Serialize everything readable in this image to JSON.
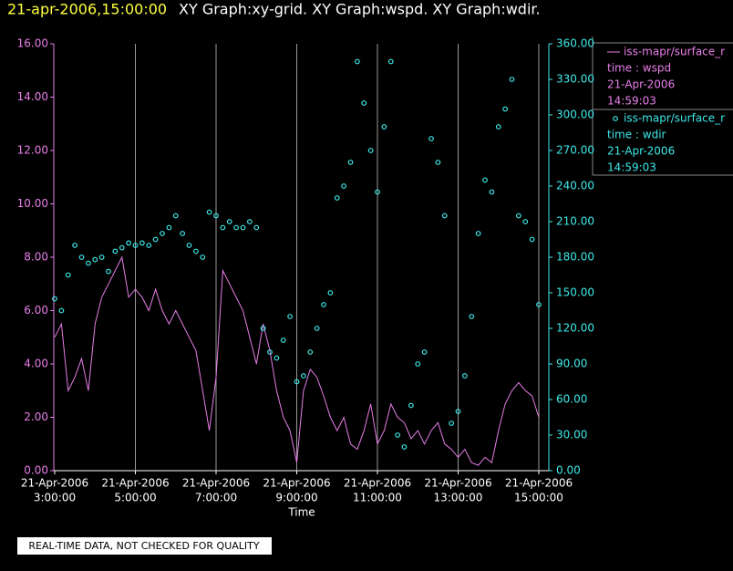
{
  "chart_data": {
    "type": "line_scatter",
    "title": "21-apr-2006,15:00:00",
    "subtitle": "XY Graph:xy-grid.  XY Graph:wspd.  XY Graph:wdir.",
    "x_label": "Time",
    "footer": "REAL-TIME DATA, NOT CHECKED FOR QUALITY",
    "grid": true,
    "x": [
      "2006-04-21T03:00",
      "2006-04-21T03:10",
      "2006-04-21T03:20",
      "2006-04-21T03:30",
      "2006-04-21T03:40",
      "2006-04-21T03:50",
      "2006-04-21T04:00",
      "2006-04-21T04:10",
      "2006-04-21T04:20",
      "2006-04-21T04:30",
      "2006-04-21T04:40",
      "2006-04-21T04:50",
      "2006-04-21T05:00",
      "2006-04-21T05:10",
      "2006-04-21T05:20",
      "2006-04-21T05:30",
      "2006-04-21T05:40",
      "2006-04-21T05:50",
      "2006-04-21T06:00",
      "2006-04-21T06:10",
      "2006-04-21T06:20",
      "2006-04-21T06:30",
      "2006-04-21T06:40",
      "2006-04-21T06:50",
      "2006-04-21T07:00",
      "2006-04-21T07:10",
      "2006-04-21T07:20",
      "2006-04-21T07:30",
      "2006-04-21T07:40",
      "2006-04-21T07:50",
      "2006-04-21T08:00",
      "2006-04-21T08:10",
      "2006-04-21T08:20",
      "2006-04-21T08:30",
      "2006-04-21T08:40",
      "2006-04-21T08:50",
      "2006-04-21T09:00",
      "2006-04-21T09:10",
      "2006-04-21T09:20",
      "2006-04-21T09:30",
      "2006-04-21T09:40",
      "2006-04-21T09:50",
      "2006-04-21T10:00",
      "2006-04-21T10:10",
      "2006-04-21T10:20",
      "2006-04-21T10:30",
      "2006-04-21T10:40",
      "2006-04-21T10:50",
      "2006-04-21T11:00",
      "2006-04-21T11:10",
      "2006-04-21T11:20",
      "2006-04-21T11:30",
      "2006-04-21T11:40",
      "2006-04-21T11:50",
      "2006-04-21T12:00",
      "2006-04-21T12:10",
      "2006-04-21T12:20",
      "2006-04-21T12:30",
      "2006-04-21T12:40",
      "2006-04-21T12:50",
      "2006-04-21T13:00",
      "2006-04-21T13:10",
      "2006-04-21T13:20",
      "2006-04-21T13:30",
      "2006-04-21T13:40",
      "2006-04-21T13:50",
      "2006-04-21T14:00",
      "2006-04-21T14:10",
      "2006-04-21T14:20",
      "2006-04-21T14:30",
      "2006-04-21T14:40",
      "2006-04-21T14:50",
      "2006-04-21T15:00"
    ],
    "xlim": [
      "2006-04-21T03:00",
      "2006-04-21T15:00"
    ],
    "xticks": [
      {
        "value": "2006-04-21T03:00",
        "label": [
          "21-Apr-2006",
          "3:00:00"
        ]
      },
      {
        "value": "2006-04-21T05:00",
        "label": [
          "21-Apr-2006",
          "5:00:00"
        ]
      },
      {
        "value": "2006-04-21T07:00",
        "label": [
          "21-Apr-2006",
          "7:00:00"
        ]
      },
      {
        "value": "2006-04-21T09:00",
        "label": [
          "21-Apr-2006",
          "9:00:00"
        ]
      },
      {
        "value": "2006-04-21T11:00",
        "label": [
          "21-Apr-2006",
          "11:00:00"
        ]
      },
      {
        "value": "2006-04-21T13:00",
        "label": [
          "21-Apr-2006",
          "13:00:00"
        ]
      },
      {
        "value": "2006-04-21T15:00",
        "label": [
          "21-Apr-2006",
          "15:00:00"
        ]
      }
    ],
    "ylim": [
      0,
      16
    ],
    "yticks": [
      {
        "value": 0,
        "label": "0.00"
      },
      {
        "value": 2,
        "label": "2.00"
      },
      {
        "value": 4,
        "label": "4.00"
      },
      {
        "value": 6,
        "label": "6.00"
      },
      {
        "value": 8,
        "label": "8.00"
      },
      {
        "value": 10,
        "label": "10.00"
      },
      {
        "value": 12,
        "label": "12.00"
      },
      {
        "value": 14,
        "label": "14.00"
      },
      {
        "value": 16,
        "label": "16.00"
      }
    ],
    "y2lim": [
      0,
      360
    ],
    "y2ticks": [
      {
        "value": 0,
        "label": "0.00"
      },
      {
        "value": 30,
        "label": "30.00"
      },
      {
        "value": 60,
        "label": "60.00"
      },
      {
        "value": 90,
        "label": "90.00"
      },
      {
        "value": 120,
        "label": "120.00"
      },
      {
        "value": 150,
        "label": "150.00"
      },
      {
        "value": 180,
        "label": "180.00"
      },
      {
        "value": 210,
        "label": "210.00"
      },
      {
        "value": 240,
        "label": "240.00"
      },
      {
        "value": 270,
        "label": "270.00"
      },
      {
        "value": 300,
        "label": "300.00"
      },
      {
        "value": 330,
        "label": "330.00"
      },
      {
        "value": 360,
        "label": "360.00"
      }
    ],
    "series": [
      {
        "name": "iss-mapr/surface_r",
        "legend_text": [
          "time : wspd",
          "21-Apr-2006",
          "14:59:03"
        ],
        "color": "#e87ee8",
        "kind": "line",
        "values": [
          5.0,
          5.5,
          3.0,
          3.5,
          4.2,
          3.0,
          5.5,
          6.5,
          7.0,
          7.5,
          8.0,
          6.5,
          6.8,
          6.5,
          6.0,
          6.8,
          6.0,
          5.5,
          6.0,
          5.5,
          5.0,
          4.5,
          3.0,
          1.5,
          3.5,
          7.5,
          7.0,
          6.5,
          6.0,
          5.0,
          4.0,
          5.5,
          4.5,
          3.0,
          2.0,
          1.5,
          0.3,
          3.0,
          3.8,
          3.5,
          2.8,
          2.0,
          1.5,
          2.0,
          1.0,
          0.8,
          1.5,
          2.5,
          1.0,
          1.5,
          2.5,
          2.0,
          1.8,
          1.2,
          1.5,
          1.0,
          1.5,
          1.8,
          1.0,
          0.8,
          0.5,
          0.8,
          0.3,
          0.2,
          0.5,
          0.3,
          1.5,
          2.5,
          3.0,
          3.3,
          3.0,
          2.8,
          2.0
        ]
      },
      {
        "name": "iss-mapr/surface_r",
        "legend_text": [
          "time : wdir",
          "21-Apr-2006",
          "14:59:03"
        ],
        "color": "#3fe8e8",
        "kind": "scatter",
        "axis": "y2",
        "values": [
          145,
          135,
          165,
          190,
          180,
          175,
          178,
          180,
          168,
          185,
          188,
          192,
          190,
          192,
          190,
          195,
          200,
          205,
          215,
          200,
          190,
          185,
          180,
          218,
          215,
          205,
          210,
          205,
          205,
          210,
          205,
          120,
          100,
          95,
          110,
          130,
          75,
          80,
          100,
          120,
          140,
          150,
          230,
          240,
          260,
          345,
          310,
          270,
          235,
          290,
          345,
          30,
          20,
          55,
          90,
          100,
          280,
          260,
          215,
          40,
          50,
          80,
          130,
          200,
          245,
          235,
          290,
          305,
          330,
          215,
          210,
          195,
          140
        ]
      }
    ]
  }
}
